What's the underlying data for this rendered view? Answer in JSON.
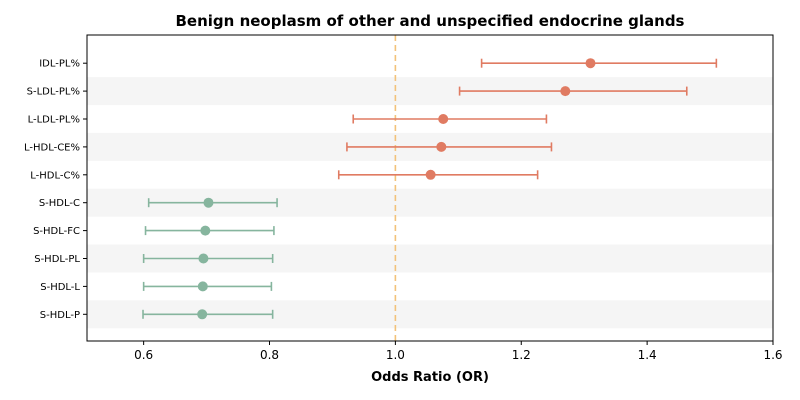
{
  "chart_data": {
    "type": "forest",
    "title": "Benign neoplasm of other and unspecified endocrine glands",
    "xlabel": "Odds Ratio (OR)",
    "xlim": [
      0.51,
      1.6
    ],
    "xticks": [
      0.6,
      0.8,
      1.0,
      1.2,
      1.4,
      1.6
    ],
    "xtick_labels": [
      "0.6",
      "0.8",
      "1.0",
      "1.2",
      "1.4",
      "1.6"
    ],
    "reference_line": 1.0,
    "reference_color": "#f2c27a",
    "band_color": "#f5f5f5",
    "colors": {
      "risk": "#e07b62",
      "protective": "#86b59e"
    },
    "rows": [
      {
        "label": "IDL-PL%",
        "or": 1.31,
        "lower": 1.137,
        "upper": 1.51,
        "group": "risk"
      },
      {
        "label": "S-LDL-PL%",
        "or": 1.27,
        "lower": 1.102,
        "upper": 1.463,
        "group": "risk"
      },
      {
        "label": "L-LDL-PL%",
        "or": 1.076,
        "lower": 0.933,
        "upper": 1.24,
        "group": "risk"
      },
      {
        "label": "L-HDL-CE%",
        "or": 1.073,
        "lower": 0.923,
        "upper": 1.248,
        "group": "risk"
      },
      {
        "label": "L-HDL-C%",
        "or": 1.056,
        "lower": 0.91,
        "upper": 1.226,
        "group": "risk"
      },
      {
        "label": "S-HDL-C",
        "or": 0.703,
        "lower": 0.608,
        "upper": 0.812,
        "group": "protective"
      },
      {
        "label": "S-HDL-FC",
        "or": 0.698,
        "lower": 0.603,
        "upper": 0.807,
        "group": "protective"
      },
      {
        "label": "S-HDL-PL",
        "or": 0.695,
        "lower": 0.6,
        "upper": 0.805,
        "group": "protective"
      },
      {
        "label": "S-HDL-L",
        "or": 0.694,
        "lower": 0.6,
        "upper": 0.803,
        "group": "protective"
      },
      {
        "label": "S-HDL-P",
        "or": 0.693,
        "lower": 0.599,
        "upper": 0.805,
        "group": "protective"
      }
    ]
  }
}
